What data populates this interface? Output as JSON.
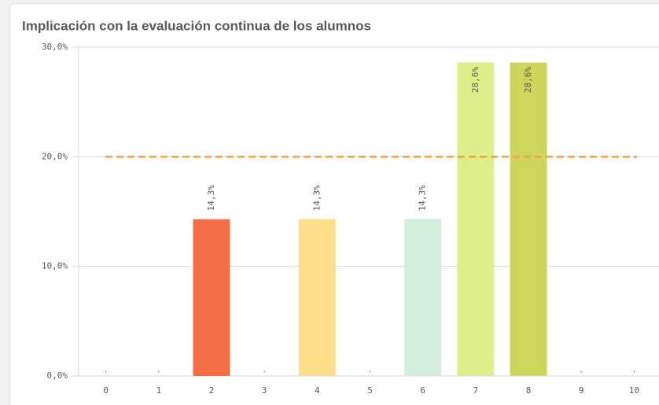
{
  "chart_data": {
    "type": "bar",
    "title": "Implicación con la evaluación continua de los alumnos",
    "categories": [
      "0",
      "1",
      "2",
      "3",
      "4",
      "5",
      "6",
      "7",
      "8",
      "9",
      "10"
    ],
    "values": [
      0,
      0,
      14.3,
      0,
      14.3,
      0,
      14.3,
      28.6,
      28.6,
      0,
      0
    ],
    "value_labels": [
      null,
      null,
      "14,3%",
      null,
      "14,3%",
      null,
      "14,3%",
      "28,6%",
      "28,6%",
      null,
      null
    ],
    "colors": [
      "#999999",
      "#999999",
      "#f56e45",
      "#999999",
      "#fddc8a",
      "#999999",
      "#d2eedc",
      "#dcef8a",
      "#cdd65a",
      "#999999",
      "#999999"
    ],
    "ylim": [
      0,
      30
    ],
    "yticks": [
      {
        "value": 0,
        "label": "0,0%"
      },
      {
        "value": 10,
        "label": "10,0%"
      },
      {
        "value": 20,
        "label": "20,0%"
      },
      {
        "value": 30,
        "label": "30,0%"
      }
    ],
    "grid": true,
    "reference_line": {
      "value": 20,
      "color": "#f5a03c"
    }
  }
}
